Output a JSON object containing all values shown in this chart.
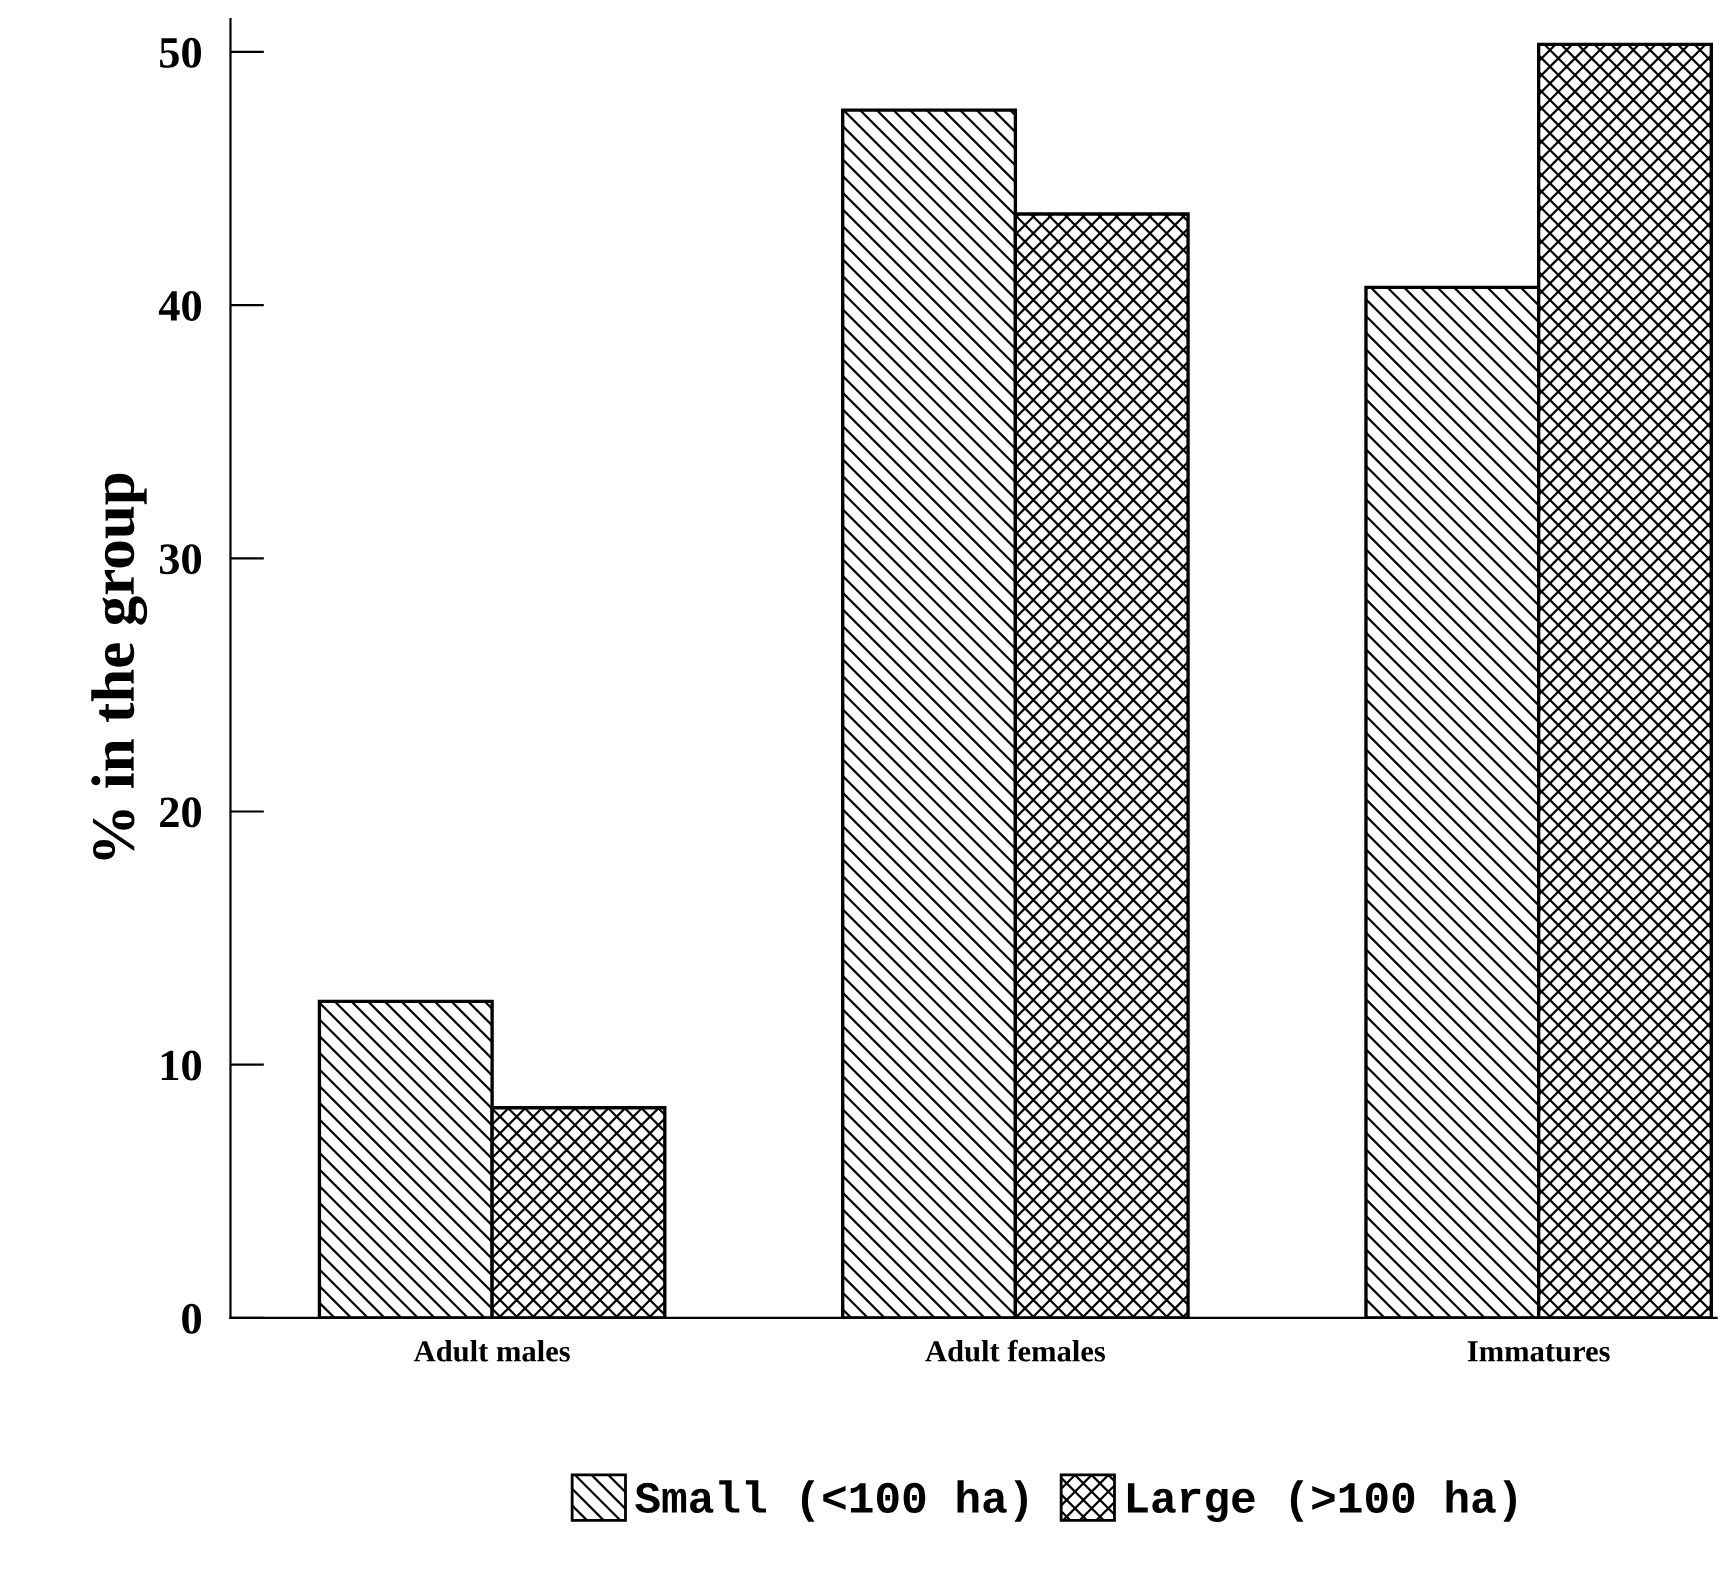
{
  "chart_data": {
    "type": "bar",
    "ylabel": "% in the group",
    "categories": [
      "Adult males",
      "Adult females",
      "Immatures"
    ],
    "series": [
      {
        "name": "Small (<100 ha)",
        "color": "#000000",
        "values": [
          12.5,
          47.7,
          40.7
        ]
      },
      {
        "name": "Large (>100 ha)",
        "color": "#000000",
        "values": [
          8.3,
          43.6,
          50.3
        ]
      }
    ],
    "ylim": [
      0,
      51.3
    ],
    "yticks": [
      0,
      10,
      20,
      30,
      40,
      50
    ],
    "grid": false,
    "legend": "bottom"
  }
}
